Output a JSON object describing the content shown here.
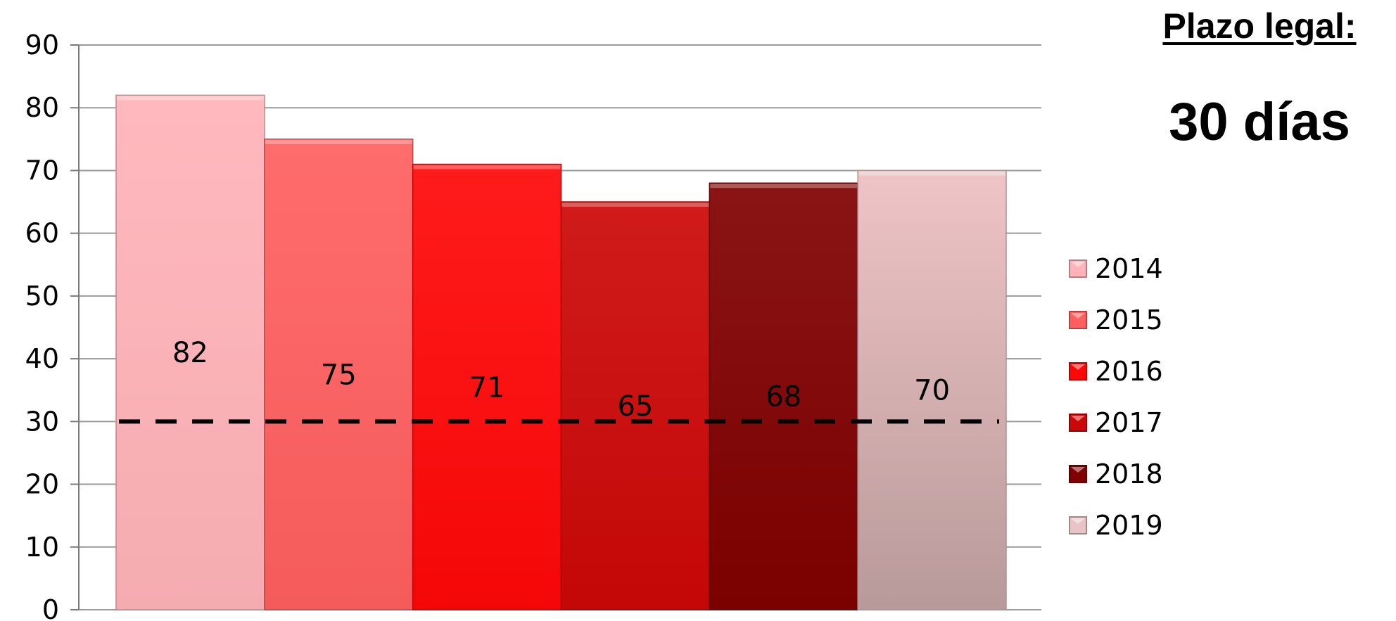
{
  "note": {
    "heading": "Plazo legal:",
    "value": "30 días"
  },
  "chart_data": {
    "type": "bar",
    "categories": [
      "2014",
      "2015",
      "2016",
      "2017",
      "2018",
      "2019"
    ],
    "values": [
      82,
      75,
      71,
      65,
      68,
      70
    ],
    "data_labels": [
      "82",
      "75",
      "71",
      "65",
      "68",
      "70"
    ],
    "colors": [
      "#ffb3b8",
      "#ff5f5f",
      "#ff0707",
      "#cc0707",
      "#800000",
      "#e8c4c4"
    ],
    "bar_fill_gradients": {
      "2019": [
        "#efc4c6",
        "#b89a9a"
      ]
    },
    "ylim": [
      0,
      90
    ],
    "yticks": [
      "0",
      "10",
      "20",
      "30",
      "40",
      "50",
      "60",
      "70",
      "80",
      "90"
    ],
    "reference_line": {
      "value": 30,
      "style": "dashed",
      "color": "#000000"
    },
    "legend": {
      "position": "right",
      "entries": [
        "2014",
        "2015",
        "2016",
        "2017",
        "2018",
        "2019"
      ]
    },
    "grid": true,
    "title": "",
    "xlabel": "",
    "ylabel": ""
  }
}
